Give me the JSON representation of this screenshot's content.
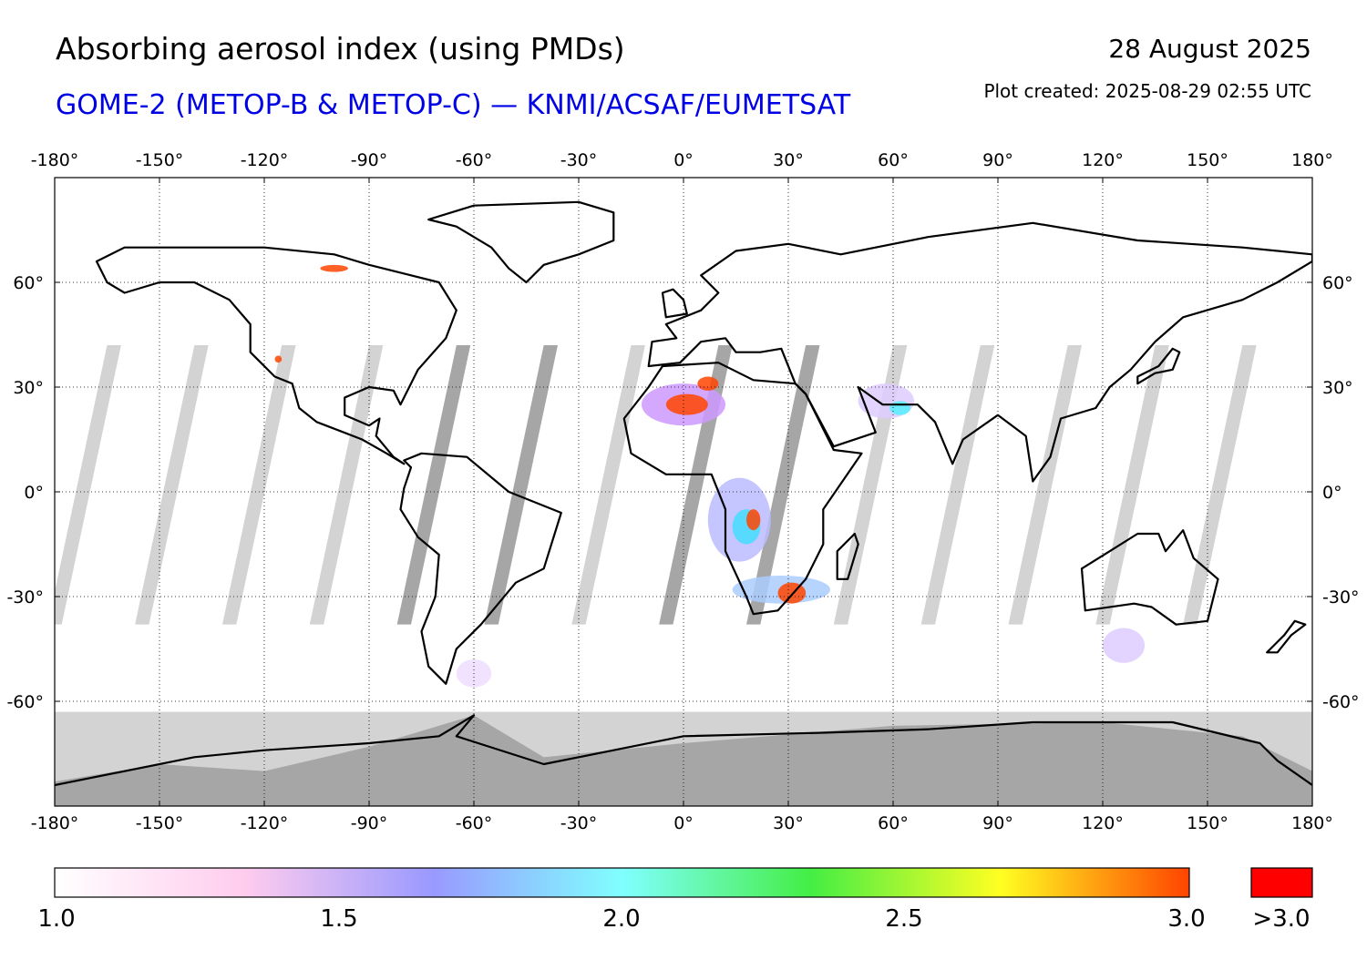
{
  "header": {
    "title": "Absorbing aerosol index (using PMDs)",
    "subtitle": "GOME-2 (METOP-B & METOP-C) — KNMI/ACSAF/EUMETSAT",
    "date": "28 August 2025",
    "created": "Plot created: 2025-08-29 02:55 UTC"
  },
  "map": {
    "projection": "equirectangular",
    "lon_range": [
      -180,
      180
    ],
    "lat_range": [
      -90,
      90
    ],
    "lon_ticks": [
      "-180°",
      "-150°",
      "-120°",
      "-90°",
      "-60°",
      "-30°",
      "0°",
      "30°",
      "60°",
      "90°",
      "120°",
      "150°",
      "180°"
    ],
    "lat_ticks": [
      "60°",
      "30°",
      "0°",
      "-30°",
      "-60°"
    ],
    "grid": "dotted",
    "colors": {
      "coast": "#000000",
      "no_data": "#d3d3d3",
      "polar_night": "#a6a6a6",
      "max": "#ff0000"
    }
  },
  "colorbar": {
    "labels": [
      "1.0",
      "1.5",
      "2.0",
      "2.5",
      "3.0"
    ],
    "overflow_label": ">3.0",
    "min": 1.0,
    "max": 3.0,
    "stops": [
      "#ffffff",
      "#ffccee",
      "#9999ff",
      "#80ffff",
      "#44ee44",
      "#ffff22",
      "#ff4400"
    ],
    "overflow_color": "#ff0000"
  }
}
